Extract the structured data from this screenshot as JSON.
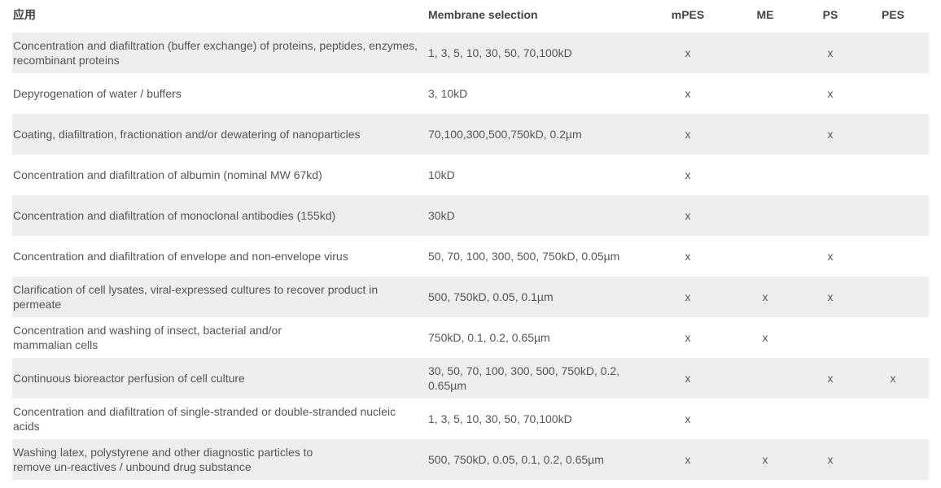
{
  "headers": [
    "应用",
    "Membrane selection",
    "mPES",
    "ME",
    "PS",
    "PES"
  ],
  "rows": [
    {
      "app": "Concentration and diafiltration (buffer exchange) of proteins, peptides, enzymes, recombinant proteins",
      "membrane": "1, 3, 5, 10, 30, 50, 70,100kD",
      "mPES": "x",
      "ME": "",
      "PS": "x",
      "PES": ""
    },
    {
      "app": "Depyrogenation of water / buffers",
      "membrane": "3, 10kD",
      "mPES": "x",
      "ME": "",
      "PS": "x",
      "PES": ""
    },
    {
      "app": "Coating, diafiltration, fractionation and/or dewatering of nanoparticles",
      "membrane": "70,100,300,500,750kD, 0.2µm",
      "mPES": "x",
      "ME": "",
      "PS": "x",
      "PES": ""
    },
    {
      "app": "Concentration and diafiltration of albumin (nominal MW 67kd)",
      "membrane": "10kD",
      "mPES": "x",
      "ME": "",
      "PS": "",
      "PES": ""
    },
    {
      "app": "Concentration and diafiltration of monoclonal antibodies (155kd)",
      "membrane": "30kD",
      "mPES": "x",
      "ME": "",
      "PS": "",
      "PES": ""
    },
    {
      "app": "Concentration and diafiltration of envelope and non-envelope virus",
      "membrane": "50, 70, 100, 300, 500, 750kD, 0.05µm",
      "mPES": "x",
      "ME": "",
      "PS": "x",
      "PES": ""
    },
    {
      "app": "Clarification of cell lysates, viral-expressed cultures to recover product in permeate",
      "membrane": "500, 750kD, 0.05, 0.1µm",
      "mPES": "x",
      "ME": "x",
      "PS": "x",
      "PES": ""
    },
    {
      "app": "Concentration and washing of insect, bacterial and/or\nmammalian cells",
      "membrane": "750kD, 0.1, 0.2, 0.65µm",
      "mPES": "x",
      "ME": "x",
      "PS": "",
      "PES": ""
    },
    {
      "app": "Continuous bioreactor perfusion of cell culture",
      "membrane": "30, 50, 70, 100, 300, 500, 750kD, 0.2, 0.65µm",
      "mPES": "x",
      "ME": "",
      "PS": "x",
      "PES": "x"
    },
    {
      "app": "Concentration and diafiltration of single-stranded or double-stranded nucleic acids",
      "membrane": "1, 3, 5, 10, 30, 50, 70,100kD",
      "mPES": "x",
      "ME": "",
      "PS": "",
      "PES": ""
    },
    {
      "app": "Washing latex, polystyrene and other diagnostic particles to\nremove un-reactives / unbound drug substance",
      "membrane": "500, 750kD, 0.05, 0.1, 0.2, 0.65µm",
      "mPES": "x",
      "ME": "x",
      "PS": "x",
      "PES": ""
    }
  ]
}
